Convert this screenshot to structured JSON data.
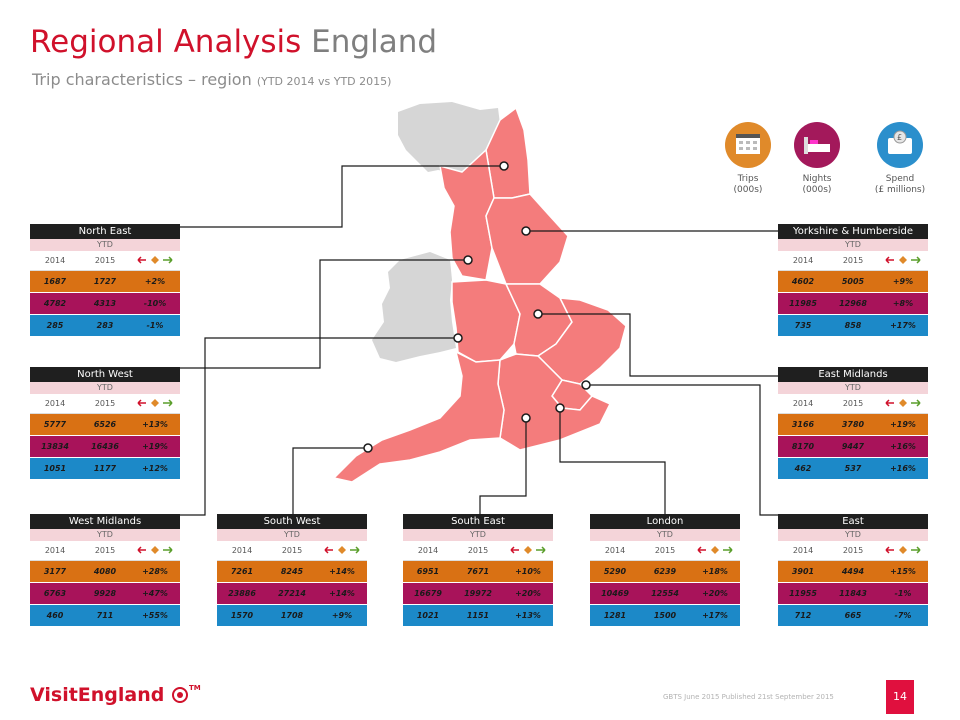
{
  "title": {
    "part1": "Regional Analysis",
    "part2": "England"
  },
  "subtitle": {
    "main": "Trip characteristics – region",
    "note": "(YTD 2014 vs YTD 2015)"
  },
  "legend": [
    {
      "label1": "Trips",
      "label2": "(000s)",
      "icon": "calendar-icon",
      "color": "#e08a2a"
    },
    {
      "label1": "Nights",
      "label2": "(000s)",
      "icon": "bed-icon",
      "color": "#a3195b"
    },
    {
      "label1": "Spend",
      "label2": "(£ millions)",
      "icon": "wallet-icon",
      "color": "#2b8fcc"
    }
  ],
  "card_labels": {
    "ytd": "YTD",
    "y1": "2014",
    "y2": "2015"
  },
  "regions": [
    {
      "name": "North East",
      "trips": [
        "1687",
        "1727",
        "+2%"
      ],
      "nights": [
        "4782",
        "4313",
        "-10%"
      ],
      "spend": [
        "285",
        "283",
        "-1%"
      ]
    },
    {
      "name": "North West",
      "trips": [
        "5777",
        "6526",
        "+13%"
      ],
      "nights": [
        "13834",
        "16436",
        "+19%"
      ],
      "spend": [
        "1051",
        "1177",
        "+12%"
      ]
    },
    {
      "name": "West Midlands",
      "trips": [
        "3177",
        "4080",
        "+28%"
      ],
      "nights": [
        "6763",
        "9928",
        "+47%"
      ],
      "spend": [
        "460",
        "711",
        "+55%"
      ]
    },
    {
      "name": "South West",
      "trips": [
        "7261",
        "8245",
        "+14%"
      ],
      "nights": [
        "23886",
        "27214",
        "+14%"
      ],
      "spend": [
        "1570",
        "1708",
        "+9%"
      ]
    },
    {
      "name": "South East",
      "trips": [
        "6951",
        "7671",
        "+10%"
      ],
      "nights": [
        "16679",
        "19972",
        "+20%"
      ],
      "spend": [
        "1021",
        "1151",
        "+13%"
      ]
    },
    {
      "name": "London",
      "trips": [
        "5290",
        "6239",
        "+18%"
      ],
      "nights": [
        "10469",
        "12554",
        "+20%"
      ],
      "spend": [
        "1281",
        "1500",
        "+17%"
      ]
    },
    {
      "name": "East",
      "trips": [
        "3901",
        "4494",
        "+15%"
      ],
      "nights": [
        "11955",
        "11843",
        "-1%"
      ],
      "spend": [
        "712",
        "665",
        "-7%"
      ]
    },
    {
      "name": "East Midlands",
      "trips": [
        "3166",
        "3780",
        "+19%"
      ],
      "nights": [
        "8170",
        "9447",
        "+16%"
      ],
      "spend": [
        "462",
        "537",
        "+16%"
      ]
    },
    {
      "name": "Yorkshire & Humberside",
      "trips": [
        "4602",
        "5005",
        "+9%"
      ],
      "nights": [
        "11985",
        "12968",
        "+8%"
      ],
      "spend": [
        "735",
        "858",
        "+17%"
      ]
    }
  ],
  "footer": {
    "logo": "VisitEngland",
    "tm": "TM",
    "note": "GBTS June 2015 Published 21st September 2015",
    "page": "14"
  },
  "colors": {
    "brand_red": "#d0112b",
    "map_fill": "#f47c7c",
    "map_grey": "#d4d4d4",
    "trips": "#d97114",
    "nights": "#a8135a",
    "spend": "#1c89c8"
  }
}
